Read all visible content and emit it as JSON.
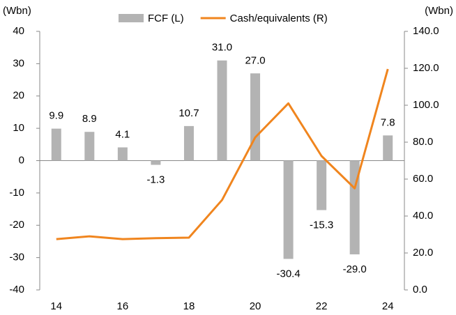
{
  "chart_data": {
    "type": "bar",
    "y_label": "(Wbn)",
    "y2_label": "(Wbn)",
    "categories": [
      "14",
      null,
      "16",
      null,
      "18",
      null,
      "20",
      null,
      "22",
      null,
      "24"
    ],
    "series": [
      {
        "name": "FCF (L)",
        "type": "bar",
        "color": "#b3b3b3",
        "values": [
          9.9,
          8.9,
          4.1,
          -1.3,
          10.7,
          31.0,
          27.0,
          -30.4,
          -15.3,
          -29.0,
          7.8
        ],
        "value_labels": [
          "9.9",
          "8.9",
          "4.1",
          "-1.3",
          "10.7",
          "31.0",
          "27.0",
          "-30.4",
          "-15.3",
          "-29.0",
          "7.8"
        ]
      },
      {
        "name": "Cash/equivalents (R)",
        "type": "line",
        "color": "#f0851e",
        "axis": "y2",
        "values": [
          27.5,
          29,
          27.5,
          28,
          28.3,
          48.7,
          82.6,
          101,
          72.5,
          55,
          119.6
        ]
      }
    ],
    "ylim": [
      -40,
      40
    ],
    "yticks": [
      -40,
      -30,
      -20,
      -10,
      0,
      10,
      20,
      30,
      40
    ],
    "y2lim": [
      0,
      140
    ],
    "y2ticks": [
      {
        "value": 0,
        "label": "0.0"
      },
      {
        "value": 20,
        "label": "20.0"
      },
      {
        "value": 40,
        "label": "40.0"
      },
      {
        "value": 60,
        "label": "60.0"
      },
      {
        "value": 80,
        "label": "80.0"
      },
      {
        "value": 100,
        "label": "100.0"
      },
      {
        "value": 120,
        "label": "120.0"
      },
      {
        "value": 140,
        "label": "140.0"
      }
    ],
    "legend": "top",
    "grid": false
  }
}
